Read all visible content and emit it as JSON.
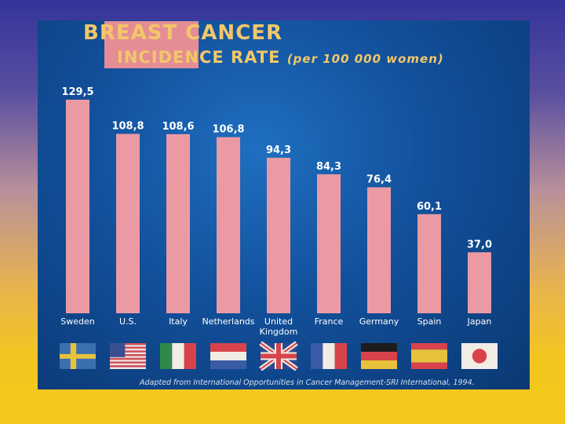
{
  "chart_data": {
    "type": "bar",
    "title": "BREAST CANCER",
    "subtitle_main": "INCIDENCE RATE",
    "subtitle_unit": "(per 100 000 women)",
    "categories": [
      "Sweden",
      "U.S.",
      "Italy",
      "Netherlands",
      "United Kingdom",
      "France",
      "Germany",
      "Spain",
      "Japan"
    ],
    "category_labels": [
      [
        "Sweden"
      ],
      [
        "U.S."
      ],
      [
        "Italy"
      ],
      [
        "Netherlands"
      ],
      [
        "United",
        "Kingdom"
      ],
      [
        "France"
      ],
      [
        "Germany"
      ],
      [
        "Spain"
      ],
      [
        "Japan"
      ]
    ],
    "values": [
      129.5,
      108.8,
      108.6,
      106.8,
      94.3,
      84.3,
      76.4,
      60.1,
      37.0
    ],
    "value_labels": [
      "129,5",
      "108,8",
      "108,6",
      "106,8",
      "94,3",
      "84,3",
      "76,4",
      "60,1",
      "37,0"
    ],
    "ylim": [
      0,
      129.5
    ],
    "grid": false,
    "bar_color": "#eb9aa4",
    "flags": [
      "sweden-flag",
      "usa-flag",
      "italy-flag",
      "netherlands-flag",
      "uk-flag",
      "france-flag",
      "germany-flag",
      "spain-flag",
      "japan-flag"
    ]
  },
  "source": "Adapted from International Opportunities in Cancer Management-SRI International, 1994.",
  "colors": {
    "slide_background": "#12509b",
    "title_color": "#f2c76a",
    "label_color": "#ffffff"
  }
}
